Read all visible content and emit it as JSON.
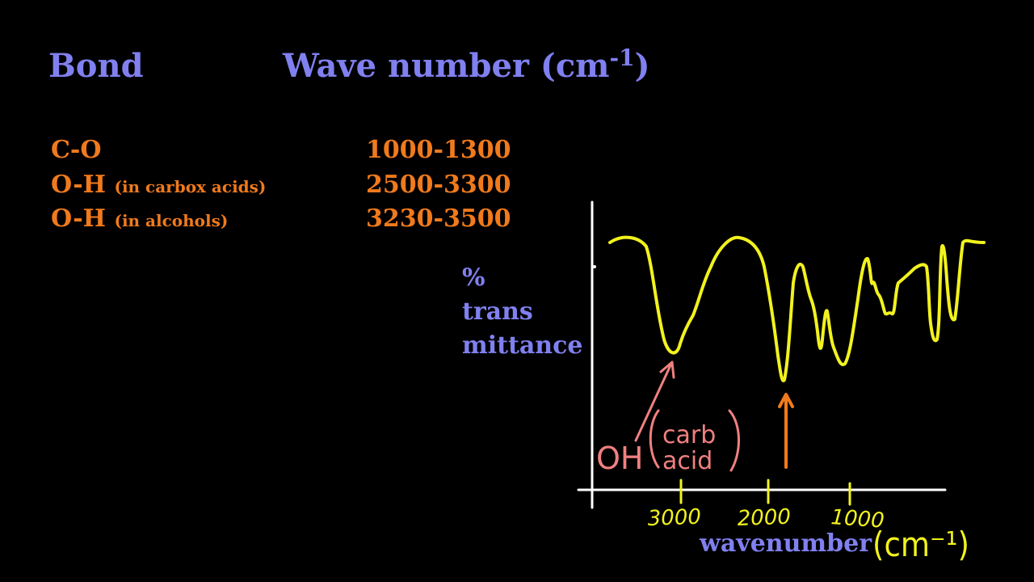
{
  "header": {
    "bond_label": "Bond",
    "wavenumber_label": "Wave number (cm",
    "wavenumber_exp": "-1",
    "wavenumber_close": ")"
  },
  "rows": [
    {
      "bond": "C-O",
      "note": "",
      "range": "1000-1300"
    },
    {
      "bond": "O-H",
      "note": "(in carbox acids)",
      "range": "2500-3300"
    },
    {
      "bond": "O-H",
      "note": "(in alcohols)",
      "range": "3230-3500"
    }
  ],
  "plot": {
    "y_label_lines": [
      "%",
      "trans",
      "mittance"
    ],
    "x_label": "wavenumber",
    "x_unit_handwritten": "(cm⁻¹)",
    "x_ticks_handwritten": [
      "3000",
      "2000",
      "1000"
    ],
    "annotation_oh": "OH",
    "annotation_paren": "(carb acid)",
    "annotation_paren_lines": [
      "carb",
      "acid"
    ],
    "colors": {
      "spectrum": "#f2f21e",
      "axis": "#ffffff",
      "arrow_oh": "#f08080",
      "arrow_co": "#f07a1c",
      "label_blue": "#8080f0",
      "label_orange": "#f07a1c"
    }
  }
}
